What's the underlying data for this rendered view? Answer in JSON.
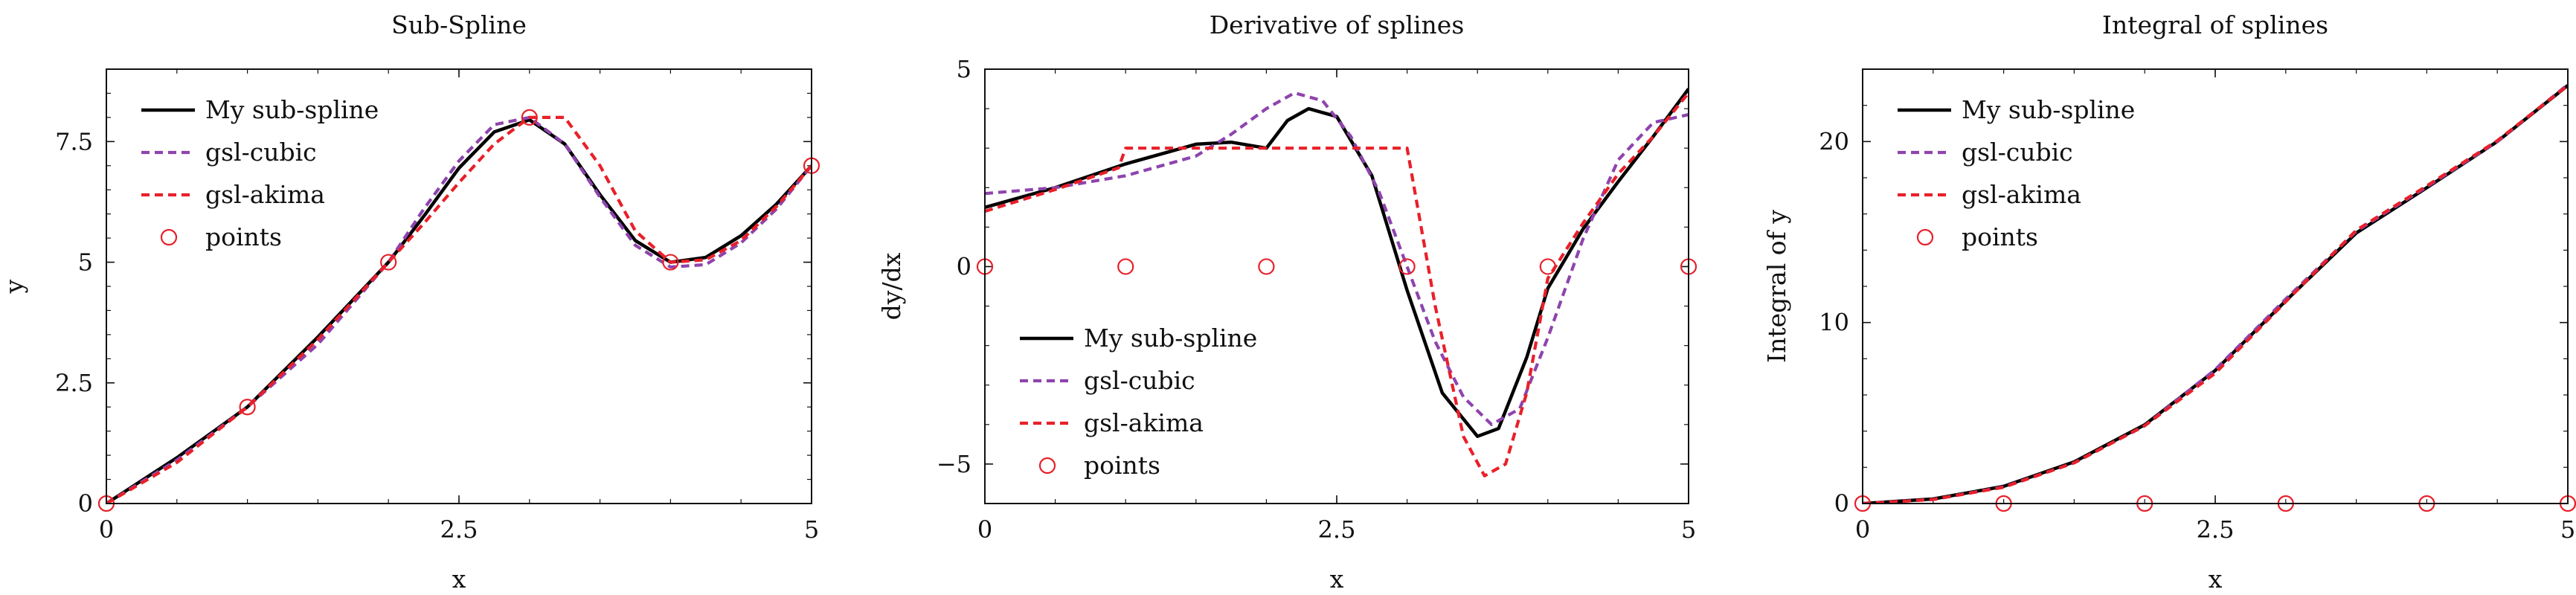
{
  "colors": {
    "spline": "#000000",
    "cubic": "#8e44ad",
    "akima": "#e8202a",
    "points": "#e8202a"
  },
  "chart_data": [
    {
      "type": "line",
      "title": "Sub-Spline",
      "xlabel": "x",
      "ylabel": "y",
      "xlim": [
        0,
        5
      ],
      "ylim": [
        0,
        9.0
      ],
      "xticks": [
        0,
        2.5,
        5
      ],
      "xtick_labels": [
        "0",
        "2.5",
        "5"
      ],
      "yticks": [
        0,
        2.5,
        5,
        7.5
      ],
      "ytick_labels": [
        "0",
        "2.5",
        "5",
        "7.5"
      ],
      "legend_position": "top-left",
      "series": [
        {
          "name": "My sub-spline",
          "style": "solid",
          "color": "#000000",
          "x": [
            0,
            0.5,
            1,
            1.5,
            2,
            2.25,
            2.5,
            2.75,
            3,
            3.25,
            3.5,
            3.75,
            4,
            4.25,
            4.5,
            4.75,
            5
          ],
          "y": [
            0,
            0.95,
            2.0,
            3.45,
            5.0,
            5.95,
            6.95,
            7.7,
            7.95,
            7.45,
            6.4,
            5.45,
            5.0,
            5.1,
            5.55,
            6.2,
            7.0
          ]
        },
        {
          "name": "gsl-cubic",
          "style": "dashed",
          "color": "#8e44ad",
          "x": [
            0,
            0.5,
            1,
            1.5,
            2,
            2.25,
            2.5,
            2.75,
            3,
            3.25,
            3.5,
            3.75,
            4,
            4.25,
            4.5,
            4.75,
            5
          ],
          "y": [
            0,
            0.9,
            2.0,
            3.3,
            5.0,
            6.1,
            7.1,
            7.85,
            8.0,
            7.45,
            6.35,
            5.35,
            4.9,
            4.95,
            5.4,
            6.1,
            7.0
          ]
        },
        {
          "name": "gsl-akima",
          "style": "dashed",
          "color": "#e8202a",
          "x": [
            0,
            0.5,
            1,
            1.5,
            2,
            2.25,
            2.5,
            2.75,
            3,
            3.25,
            3.5,
            3.75,
            4,
            4.25,
            4.5,
            4.75,
            5
          ],
          "y": [
            0,
            0.85,
            2.0,
            3.4,
            5.0,
            5.8,
            6.65,
            7.45,
            8.0,
            8.0,
            7.0,
            5.65,
            5.0,
            5.05,
            5.45,
            6.15,
            7.0
          ]
        },
        {
          "name": "points",
          "style": "markers",
          "color": "#e8202a",
          "x": [
            0,
            1,
            2,
            3,
            4,
            5
          ],
          "y": [
            0,
            2,
            5,
            8,
            5,
            7
          ]
        }
      ]
    },
    {
      "type": "line",
      "title": "Derivative of splines",
      "xlabel": "x",
      "ylabel": "dy/dx",
      "xlim": [
        0,
        5
      ],
      "ylim": [
        -6,
        5
      ],
      "xticks": [
        0,
        2.5,
        5
      ],
      "xtick_labels": [
        "0",
        "2.5",
        "5"
      ],
      "yticks": [
        -5,
        0,
        5
      ],
      "ytick_labels": [
        "−5",
        "0",
        "5"
      ],
      "legend_position": "bottom-left",
      "series": [
        {
          "name": "My sub-spline",
          "style": "solid",
          "color": "#000000",
          "x": [
            0,
            0.5,
            1,
            1.5,
            1.75,
            2,
            2.15,
            2.3,
            2.5,
            2.75,
            3,
            3.25,
            3.5,
            3.65,
            3.85,
            4,
            4.25,
            4.5,
            4.75,
            5
          ],
          "y": [
            1.5,
            2.0,
            2.6,
            3.1,
            3.15,
            3.0,
            3.7,
            4.0,
            3.8,
            2.3,
            -0.6,
            -3.2,
            -4.3,
            -4.1,
            -2.3,
            -0.55,
            0.95,
            2.15,
            3.3,
            4.5
          ]
        },
        {
          "name": "gsl-cubic",
          "style": "dashed",
          "color": "#8e44ad",
          "x": [
            0,
            0.5,
            1,
            1.5,
            1.75,
            2,
            2.2,
            2.4,
            2.6,
            2.8,
            3,
            3.2,
            3.4,
            3.6,
            3.8,
            4,
            4.25,
            4.5,
            4.75,
            5
          ],
          "y": [
            1.85,
            2.0,
            2.3,
            2.8,
            3.35,
            4.0,
            4.4,
            4.2,
            3.3,
            1.9,
            0.0,
            -1.9,
            -3.3,
            -4.0,
            -3.6,
            -1.8,
            0.7,
            2.7,
            3.65,
            3.85
          ]
        },
        {
          "name": "gsl-akima",
          "style": "dashed",
          "color": "#e8202a",
          "x": [
            0,
            0.5,
            0.95,
            1,
            1.5,
            2,
            2.5,
            3,
            3.0,
            3.2,
            3.4,
            3.55,
            3.7,
            3.85,
            4,
            4.25,
            4.5,
            4.75,
            5
          ],
          "y": [
            1.4,
            1.95,
            2.5,
            3.0,
            3.0,
            3.0,
            3.0,
            3.0,
            3.0,
            -1.0,
            -4.3,
            -5.3,
            -5.0,
            -3.2,
            -0.3,
            1.1,
            2.35,
            3.3,
            4.4
          ]
        },
        {
          "name": "points",
          "style": "markers",
          "color": "#e8202a",
          "x": [
            0,
            1,
            2,
            3,
            4,
            5
          ],
          "y": [
            0,
            0,
            0,
            0,
            0,
            0
          ]
        }
      ]
    },
    {
      "type": "line",
      "title": "Integral of splines",
      "xlabel": "x",
      "ylabel": "Integral of y",
      "xlim": [
        0,
        5
      ],
      "ylim": [
        0,
        24
      ],
      "xticks": [
        0,
        2.5,
        5
      ],
      "xtick_labels": [
        "0",
        "2.5",
        "5"
      ],
      "yticks": [
        0,
        10,
        20
      ],
      "ytick_labels": [
        "0",
        "10",
        "20"
      ],
      "legend_position": "top-left",
      "series": [
        {
          "name": "My sub-spline",
          "style": "solid",
          "color": "#000000",
          "x": [
            0,
            0.5,
            1,
            1.5,
            2,
            2.5,
            3,
            3.5,
            4,
            4.5,
            5
          ],
          "y": [
            0,
            0.25,
            0.95,
            2.3,
            4.35,
            7.35,
            11.2,
            14.95,
            17.45,
            20.0,
            23.1
          ]
        },
        {
          "name": "gsl-cubic",
          "style": "dashed",
          "color": "#8e44ad",
          "x": [
            0,
            0.5,
            1,
            1.5,
            2,
            2.5,
            3,
            3.5,
            4,
            4.5,
            5
          ],
          "y": [
            0,
            0.22,
            0.92,
            2.25,
            4.3,
            7.4,
            11.3,
            15.05,
            17.5,
            20.0,
            23.15
          ]
        },
        {
          "name": "gsl-akima",
          "style": "dashed",
          "color": "#e8202a",
          "x": [
            0,
            0.5,
            1,
            1.5,
            2,
            2.5,
            3,
            3.5,
            4,
            4.5,
            5
          ],
          "y": [
            0,
            0.22,
            0.9,
            2.25,
            4.3,
            7.2,
            11.15,
            15.1,
            17.55,
            20.05,
            23.1
          ]
        },
        {
          "name": "points",
          "style": "markers",
          "color": "#e8202a",
          "x": [
            0,
            1,
            2,
            3,
            4,
            5
          ],
          "y": [
            0,
            0,
            0,
            0,
            0,
            0
          ]
        }
      ]
    }
  ]
}
